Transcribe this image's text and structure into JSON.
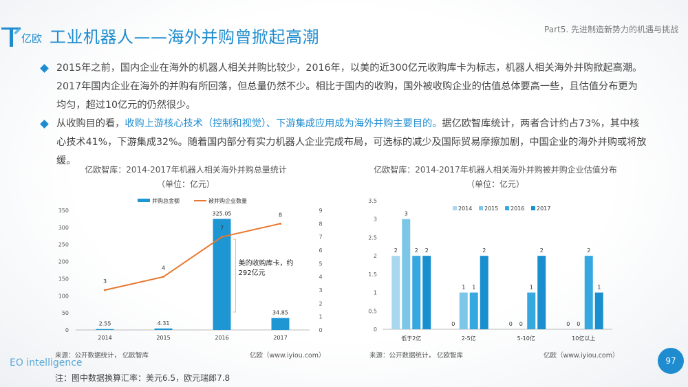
{
  "header": {
    "title": "工业机器人——海外并购曾掀起高潮",
    "part": "Part5. 先进制造新势力的机遇与挑战",
    "logo_text": "亿欧"
  },
  "bullets": [
    {
      "segments": [
        {
          "text": "2015年之前，国内企业在海外的机器人相关并购比较少，2016年，以美的近300亿元收购库卡为标志，机器人相关海外并购掀起高潮。2017年国内企业在海外的并购有所回落，但总量仍然不少。相比于国内的收购，国外被收购企业的估值总体要高一些，且估值分布更为均匀，超过10亿元的仍然很少。",
          "highlight": false
        }
      ]
    },
    {
      "segments": [
        {
          "text": "从收购目的看，",
          "highlight": false
        },
        {
          "text": "收购上游核心技术（控制和视觉）、下游集成应用成为海外并购主要目的。",
          "highlight": true
        },
        {
          "text": "据亿欧智库统计，两者合计约占73%，其中核心技术41%，下游集成32%。随着国内部分有实力机器人企业完成布局，可选标的减少及国际贸易摩擦加剧，中国企业的海外并购或将放缓。",
          "highlight": false
        }
      ]
    }
  ],
  "chart1_text": {
    "title_line1": "亿欧智库：2014-2017年机器人相关海外并购总量统计",
    "title_line2": "（单位：亿元）",
    "annotation_line1": "美的收购库卡，约",
    "annotation_line2": "292亿元",
    "source_left": "来源：公开数据统计， 亿欧智库",
    "source_right": "亿欧（www.iyiou.com）"
  },
  "chart2_text": {
    "title_line1": "亿欧智库：2014-2017年机器人相关海外并购被并购企业估值分布",
    "title_line2": "（单位：亿元）",
    "source_left": "来源：公开数据统计， 亿欧智库",
    "source_right": "亿欧（www.iyiou.com）"
  },
  "footer": {
    "brand": "EO intelligence",
    "note": "注：图中数据换算汇率：美元6.5，欧元瑞郎7.8",
    "page": "97"
  },
  "chart_data": [
    {
      "type": "bar",
      "categories": [
        "2014",
        "2015",
        "2016",
        "2017"
      ],
      "series": [
        {
          "name": "并购总金额",
          "kind": "bar",
          "axis": "left",
          "values": [
            2.55,
            4.31,
            325.05,
            34.85
          ],
          "color": "#1e96d4"
        },
        {
          "name": "被并购企业数量",
          "kind": "line",
          "axis": "right",
          "values": [
            3,
            4,
            7,
            8
          ],
          "color": "#e8772e"
        }
      ],
      "ylim": [
        0,
        350
      ],
      "yticks": [
        0,
        50,
        100,
        150,
        200,
        250,
        300,
        350
      ],
      "y2lim": [
        0,
        9
      ],
      "y2ticks": [
        0,
        1,
        2,
        3,
        4,
        5,
        6,
        7,
        8,
        9
      ],
      "legend_position": "top-center"
    },
    {
      "type": "bar",
      "categories": [
        "低于2亿",
        "2-5亿",
        "5-10亿",
        "10亿以上"
      ],
      "series": [
        {
          "name": "2014",
          "values": [
            2,
            0,
            0,
            0
          ],
          "color": "#a8d8ee"
        },
        {
          "name": "2015",
          "values": [
            3,
            1,
            0,
            0
          ],
          "color": "#7cc6e8"
        },
        {
          "name": "2016",
          "values": [
            2,
            1,
            1,
            2
          ],
          "color": "#35a9df"
        },
        {
          "name": "2017",
          "values": [
            2,
            2,
            2,
            1
          ],
          "color": "#1a8fcf"
        }
      ],
      "ylim": [
        0,
        3.5
      ],
      "yticks": [
        "0",
        "0.5",
        "1",
        "1.5",
        "2",
        "2.5",
        "3",
        "3.5"
      ],
      "legend_position": "top-right"
    }
  ]
}
